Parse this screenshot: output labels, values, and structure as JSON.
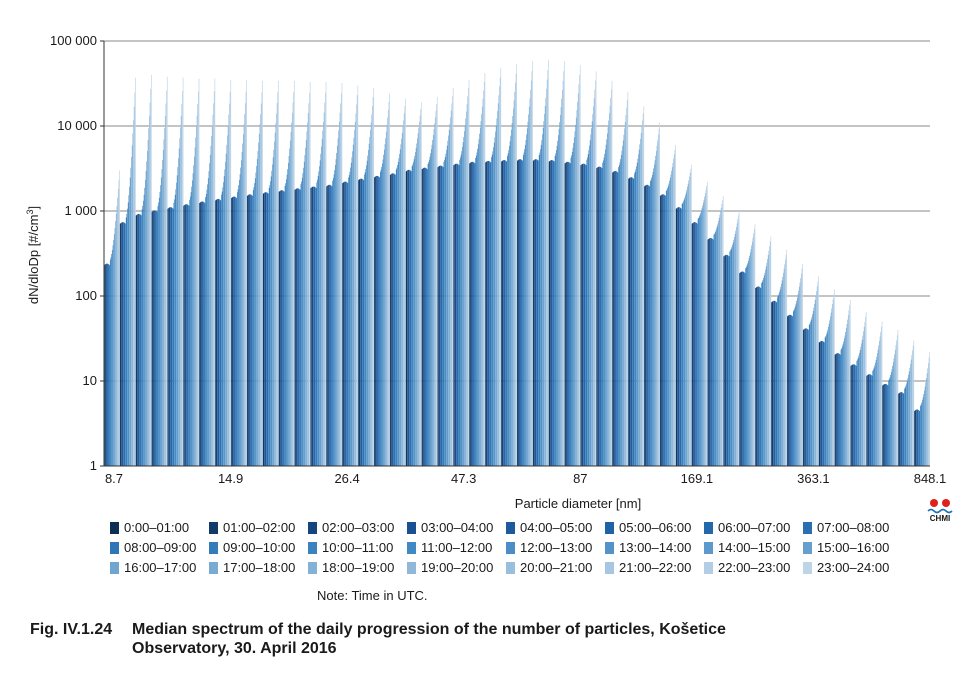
{
  "chart_data": {
    "type": "bar",
    "ylabel": "dN/dloDp [#/cm³]",
    "xlabel": "Particle diameter [nm]",
    "y_scale": "log",
    "ylim": [
      1,
      100000
    ],
    "y_ticks": [
      "1",
      "10",
      "100",
      "1 000",
      "10 000",
      "100 000"
    ],
    "x_ticks": [
      "8.7",
      "14.9",
      "26.4",
      "47.3",
      "87",
      "169.1",
      "363.1",
      "848.1"
    ],
    "grid": "horizontal",
    "legend_placement": "bottom",
    "series": [
      {
        "name": "0:00–01:00",
        "color": "#0d2e55"
      },
      {
        "name": "01:00–02:00",
        "color": "#11396a"
      },
      {
        "name": "02:00–03:00",
        "color": "#15457f"
      },
      {
        "name": "03:00–04:00",
        "color": "#19508f"
      },
      {
        "name": "04:00–05:00",
        "color": "#1d5a9c"
      },
      {
        "name": "05:00–06:00",
        "color": "#2062a6"
      },
      {
        "name": "06:00–07:00",
        "color": "#2468ac"
      },
      {
        "name": "07:00–08:00",
        "color": "#296fb2"
      },
      {
        "name": "08:00–09:00",
        "color": "#2f76b7"
      },
      {
        "name": "09:00–10:00",
        "color": "#357cbb"
      },
      {
        "name": "10:00–11:00",
        "color": "#3c82bf"
      },
      {
        "name": "11:00–12:00",
        "color": "#4288c2"
      },
      {
        "name": "12:00–13:00",
        "color": "#4b8dc4"
      },
      {
        "name": "13:00–14:00",
        "color": "#5493c7"
      },
      {
        "name": "14:00–15:00",
        "color": "#5d99ca"
      },
      {
        "name": "15:00–16:00",
        "color": "#669fcd"
      },
      {
        "name": "16:00–17:00",
        "color": "#70a5d0"
      },
      {
        "name": "17:00–18:00",
        "color": "#7aabd3"
      },
      {
        "name": "18:00–19:00",
        "color": "#84b1d6"
      },
      {
        "name": "19:00–20:00",
        "color": "#8fb8da"
      },
      {
        "name": "20:00–21:00",
        "color": "#9abfdd"
      },
      {
        "name": "21:00–22:00",
        "color": "#a6c6e1"
      },
      {
        "name": "22:00–23:00",
        "color": "#b2cde4"
      },
      {
        "name": "23:00–24:00",
        "color": "#bed5e8"
      }
    ],
    "size_bins": [
      {
        "diameter_nm": 8.7,
        "max": 260,
        "peak": 3000
      },
      {
        "diameter_nm": 9.5,
        "max": 800,
        "peak": 37000
      },
      {
        "diameter_nm": 10.4,
        "max": 1000,
        "peak": 40000
      },
      {
        "diameter_nm": 11.4,
        "max": 1100,
        "peak": 38000
      },
      {
        "diameter_nm": 12.5,
        "max": 1200,
        "peak": 37000
      },
      {
        "diameter_nm": 13.6,
        "max": 1300,
        "peak": 36000
      },
      {
        "diameter_nm": 14.9,
        "max": 1400,
        "peak": 36000
      },
      {
        "diameter_nm": 16.3,
        "max": 1500,
        "peak": 35000
      },
      {
        "diameter_nm": 17.8,
        "max": 1600,
        "peak": 35000
      },
      {
        "diameter_nm": 19.5,
        "max": 1700,
        "peak": 34000
      },
      {
        "diameter_nm": 21.3,
        "max": 1800,
        "peak": 34000
      },
      {
        "diameter_nm": 23.3,
        "max": 1900,
        "peak": 34000
      },
      {
        "diameter_nm": 25.5,
        "max": 2000,
        "peak": 33000
      },
      {
        "diameter_nm": 27.9,
        "max": 2100,
        "peak": 33000
      },
      {
        "diameter_nm": 30.5,
        "max": 2200,
        "peak": 32000
      },
      {
        "diameter_nm": 33.4,
        "max": 2400,
        "peak": 30000
      },
      {
        "diameter_nm": 36.5,
        "max": 2600,
        "peak": 28000
      },
      {
        "diameter_nm": 40.0,
        "max": 2800,
        "peak": 24000
      },
      {
        "diameter_nm": 43.7,
        "max": 3000,
        "peak": 21000
      },
      {
        "diameter_nm": 47.3,
        "max": 3300,
        "peak": 19000
      },
      {
        "diameter_nm": 52.3,
        "max": 3500,
        "peak": 22000
      },
      {
        "diameter_nm": 57.2,
        "max": 3700,
        "peak": 28000
      },
      {
        "diameter_nm": 62.6,
        "max": 3900,
        "peak": 35000
      },
      {
        "diameter_nm": 68.5,
        "max": 4100,
        "peak": 42000
      },
      {
        "diameter_nm": 74.9,
        "max": 4200,
        "peak": 48000
      },
      {
        "diameter_nm": 81.9,
        "max": 4300,
        "peak": 54000
      },
      {
        "diameter_nm": 87.0,
        "max": 4400,
        "peak": 58000
      },
      {
        "diameter_nm": 97.9,
        "max": 4400,
        "peak": 60000
      },
      {
        "diameter_nm": 107.1,
        "max": 4300,
        "peak": 58000
      },
      {
        "diameter_nm": 117.1,
        "max": 4100,
        "peak": 52000
      },
      {
        "diameter_nm": 128.1,
        "max": 3900,
        "peak": 44000
      },
      {
        "diameter_nm": 140.1,
        "max": 3600,
        "peak": 34000
      },
      {
        "diameter_nm": 153.2,
        "max": 3200,
        "peak": 25000
      },
      {
        "diameter_nm": 169.1,
        "max": 2700,
        "peak": 17000
      },
      {
        "diameter_nm": 183.3,
        "max": 2200,
        "peak": 11000
      },
      {
        "diameter_nm": 200.4,
        "max": 1700,
        "peak": 6000
      },
      {
        "diameter_nm": 219.2,
        "max": 1200,
        "peak": 3500
      },
      {
        "diameter_nm": 239.7,
        "max": 800,
        "peak": 2200
      },
      {
        "diameter_nm": 262.2,
        "max": 520,
        "peak": 1500
      },
      {
        "diameter_nm": 286.8,
        "max": 330,
        "peak": 1000
      },
      {
        "diameter_nm": 313.6,
        "max": 210,
        "peak": 700
      },
      {
        "diameter_nm": 343.0,
        "max": 140,
        "peak": 500
      },
      {
        "diameter_nm": 363.1,
        "max": 95,
        "peak": 350
      },
      {
        "diameter_nm": 410.3,
        "max": 65,
        "peak": 240
      },
      {
        "diameter_nm": 448.7,
        "max": 45,
        "peak": 170
      },
      {
        "diameter_nm": 490.8,
        "max": 32,
        "peak": 120
      },
      {
        "diameter_nm": 536.8,
        "max": 23,
        "peak": 90
      },
      {
        "diameter_nm": 587.1,
        "max": 17,
        "peak": 65
      },
      {
        "diameter_nm": 642.1,
        "max": 13,
        "peak": 50
      },
      {
        "diameter_nm": 702.3,
        "max": 10,
        "peak": 40
      },
      {
        "diameter_nm": 768.1,
        "max": 8,
        "peak": 30
      },
      {
        "diameter_nm": 848.1,
        "max": 5,
        "peak": 22
      }
    ]
  },
  "note": "Note: Time in UTC.",
  "caption": {
    "label": "Fig. IV.1.24",
    "line1": "Median spectrum of the daily progression of the number of particles, Košetice",
    "line2": "Observatory, 30. April 2016"
  },
  "logo": {
    "text": "CHMI",
    "dot_color": "#e0201b",
    "wave_color": "#1a73c2"
  }
}
